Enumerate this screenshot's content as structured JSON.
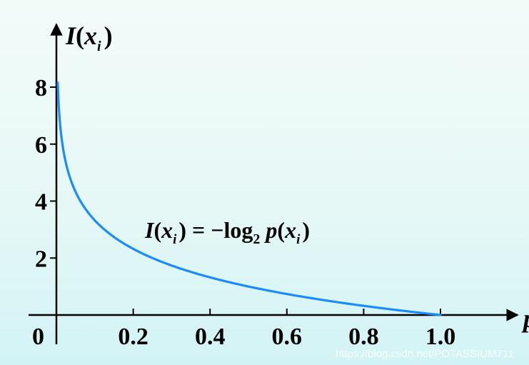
{
  "chart_data": {
    "type": "line",
    "xlabel_prefix": "p",
    "ylabel": {
      "main": "I",
      "paren_open": "(",
      "var": "x",
      "sub": "i",
      "paren_close": ")"
    },
    "xlim": [
      0,
      1.0
    ],
    "ylim": [
      0,
      8
    ],
    "x_ticks": [
      {
        "value": 0.2,
        "label": "0.2"
      },
      {
        "value": 0.4,
        "label": "0.4"
      },
      {
        "value": 0.6,
        "label": "0.6"
      },
      {
        "value": 0.8,
        "label": "0.8"
      },
      {
        "value": 1.0,
        "label": "1.0"
      }
    ],
    "y_ticks": [
      {
        "value": 2,
        "label": "2"
      },
      {
        "value": 4,
        "label": "4"
      },
      {
        "value": 6,
        "label": "6"
      },
      {
        "value": 8,
        "label": "8"
      }
    ],
    "origin_label": "0",
    "series": [
      {
        "function": "-log2(p)",
        "x_range": [
          0.0035,
          1.0
        ],
        "color": "#1a8cff"
      }
    ],
    "annotation": {
      "I": "I",
      "open": "(",
      "x": "x",
      "sub": "i",
      "close": ")",
      "eq": " = −log",
      "base": "2",
      "p": " p",
      "open2": "(",
      "x2": "x",
      "sub2": "i",
      "close2": ")"
    },
    "grid": false
  },
  "watermark": "https://blog.csdn.net/POTASSIUM711"
}
